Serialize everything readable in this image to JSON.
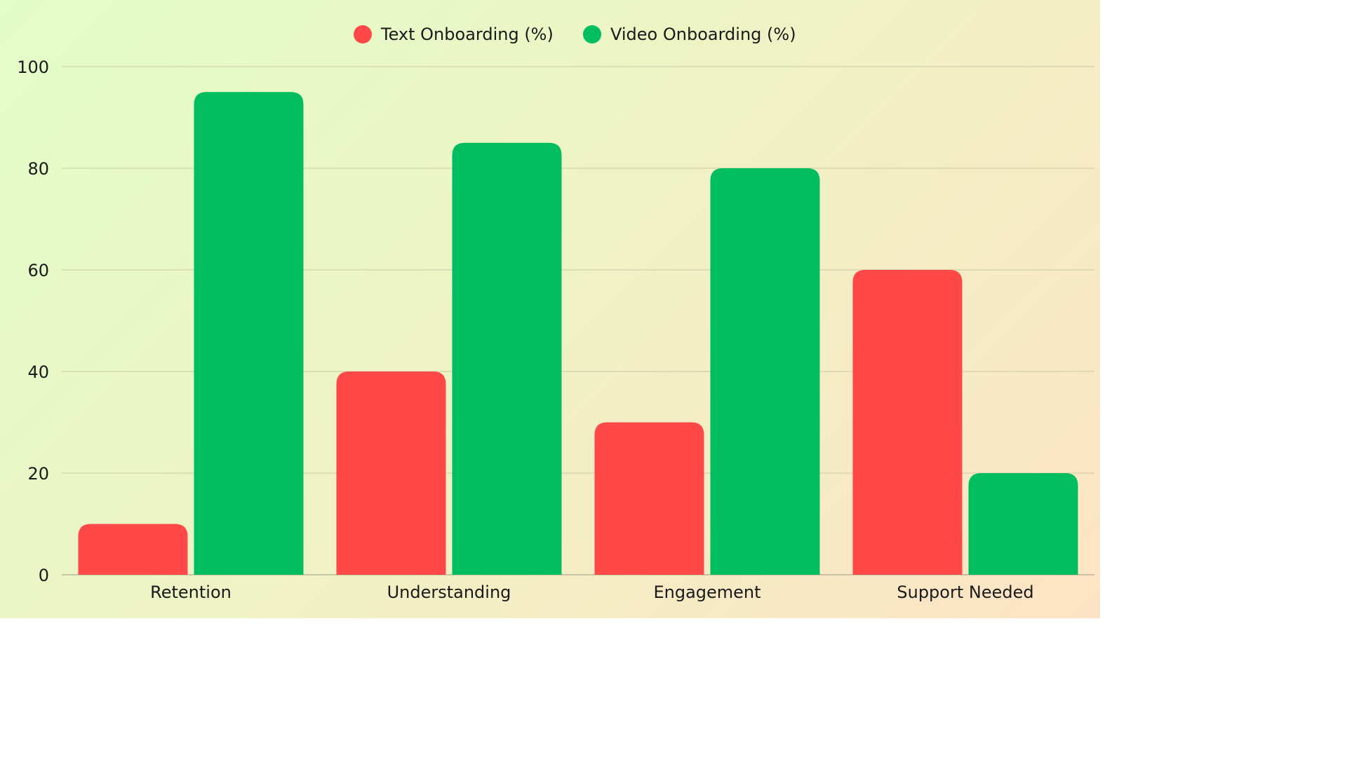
{
  "chart_data": {
    "type": "bar",
    "categories": [
      "Retention",
      "Understanding",
      "Engagement",
      "Support Needed"
    ],
    "series": [
      {
        "name": "Text Onboarding (%)",
        "color": "#ff4848",
        "values": [
          10,
          40,
          30,
          60
        ]
      },
      {
        "name": "Video Onboarding (%)",
        "color": "#00be5f",
        "values": [
          95,
          85,
          80,
          20
        ]
      }
    ],
    "yticks": [
      0,
      20,
      40,
      60,
      80,
      100
    ],
    "ylim": [
      0,
      100
    ],
    "grid": true,
    "legend_position": "top-center",
    "title": "",
    "xlabel": "",
    "ylabel": ""
  }
}
